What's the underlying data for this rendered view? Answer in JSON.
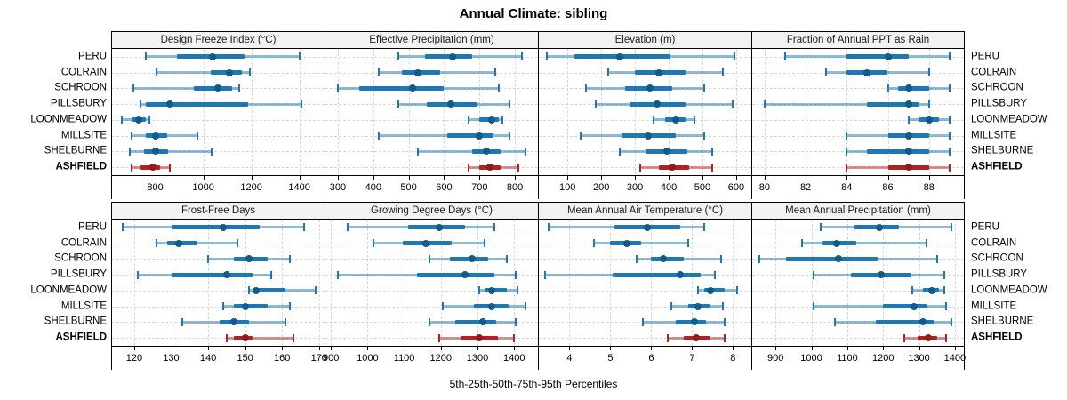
{
  "title": "Annual Climate: sibling",
  "xlabel": "5th-25th-50th-75th-95th Percentiles",
  "sites": [
    "PERU",
    "COLRAIN",
    "SCHROON",
    "PILLSBURY",
    "LOONMEADOW",
    "MILLSITE",
    "SHELBURNE",
    "ASHFIELD"
  ],
  "highlight_site": "ASHFIELD",
  "percentiles": [
    "5th",
    "25th",
    "50th",
    "75th",
    "95th"
  ],
  "colors": {
    "series": "#1f77b4",
    "series_dot": "#0f5c8c",
    "highlight": "#b22222",
    "highlight_dot": "#8f1d1d",
    "grid": "#d9d9d9",
    "header_bg": "#f2f2f2",
    "border": "#000000"
  },
  "chart_data": [
    {
      "type": "percentile-range",
      "row": 0,
      "col": 0,
      "title": "Design Freeze Index (°C)",
      "xlim": [
        620,
        1505
      ],
      "ticks": [
        800,
        1000,
        1200,
        1400
      ],
      "values": {
        "PERU": [
          760,
          890,
          1040,
          1170,
          1400
        ],
        "COLRAIN": [
          805,
          1030,
          1110,
          1160,
          1195
        ],
        "SCHROON": [
          710,
          960,
          1060,
          1120,
          1150
        ],
        "PILLSBURY": [
          740,
          760,
          860,
          1185,
          1410
        ],
        "LOONMEADOW": [
          660,
          700,
          730,
          760,
          775
        ],
        "MILLSITE": [
          700,
          760,
          800,
          850,
          975
        ],
        "SHELBURNE": [
          695,
          755,
          800,
          855,
          1035
        ],
        "ASHFIELD": [
          700,
          740,
          790,
          820,
          860
        ]
      }
    },
    {
      "type": "percentile-range",
      "row": 0,
      "col": 1,
      "title": "Effective Precipitation (mm)",
      "xlim": [
        265,
        865
      ],
      "ticks": [
        300,
        400,
        500,
        600,
        700,
        800
      ],
      "values": {
        "PERU": [
          470,
          545,
          625,
          680,
          820
        ],
        "COLRAIN": [
          415,
          480,
          525,
          590,
          745
        ],
        "SCHROON": [
          300,
          360,
          510,
          600,
          755
        ],
        "PILLSBURY": [
          470,
          550,
          620,
          695,
          785
        ],
        "LOONMEADOW": [
          670,
          700,
          735,
          755,
          765
        ],
        "MILLSITE": [
          415,
          610,
          700,
          740,
          785
        ],
        "SHELBURNE": [
          525,
          680,
          720,
          760,
          830
        ],
        "ASHFIELD": [
          670,
          700,
          730,
          760,
          810
        ]
      }
    },
    {
      "type": "percentile-range",
      "row": 0,
      "col": 2,
      "title": "Elevation (m)",
      "xlim": [
        15,
        645
      ],
      "ticks": [
        100,
        200,
        300,
        400,
        500,
        600
      ],
      "values": {
        "PERU": [
          40,
          120,
          255,
          405,
          595
        ],
        "COLRAIN": [
          220,
          300,
          370,
          450,
          560
        ],
        "SCHROON": [
          155,
          270,
          345,
          410,
          505
        ],
        "PILLSBURY": [
          185,
          285,
          365,
          450,
          590
        ],
        "LOONMEADOW": [
          355,
          390,
          420,
          450,
          475
        ],
        "MILLSITE": [
          140,
          260,
          340,
          420,
          505
        ],
        "SHELBURNE": [
          255,
          330,
          395,
          455,
          530
        ],
        "ASHFIELD": [
          315,
          370,
          410,
          460,
          530
        ]
      }
    },
    {
      "type": "percentile-range",
      "row": 0,
      "col": 3,
      "title": "Fraction of Annual PPT as Rain",
      "xlim": [
        79.4,
        89.7
      ],
      "ticks": [
        80,
        82,
        84,
        86,
        88
      ],
      "values": {
        "PERU": [
          81,
          84,
          86,
          87,
          89
        ],
        "COLRAIN": [
          83,
          84,
          85,
          86,
          88
        ],
        "SCHROON": [
          86,
          86.5,
          87,
          88,
          89
        ],
        "PILLSBURY": [
          80,
          85,
          87,
          87.5,
          88
        ],
        "LOONMEADOW": [
          87,
          87.5,
          88,
          88.5,
          89
        ],
        "MILLSITE": [
          84,
          86,
          87,
          88,
          89
        ],
        "SHELBURNE": [
          84,
          85,
          87,
          88,
          89
        ],
        "ASHFIELD": [
          84,
          86,
          87,
          88,
          89
        ]
      }
    },
    {
      "type": "percentile-range",
      "row": 1,
      "col": 0,
      "title": "Frost-Free Days",
      "xlim": [
        114,
        171.5
      ],
      "ticks": [
        120,
        130,
        140,
        150,
        160,
        170
      ],
      "values": {
        "PERU": [
          117,
          130,
          144,
          154,
          166
        ],
        "COLRAIN": [
          126,
          129,
          132,
          137,
          148
        ],
        "SCHROON": [
          140,
          147,
          151,
          156,
          162
        ],
        "PILLSBURY": [
          121,
          130,
          145,
          152,
          157
        ],
        "LOONMEADOW": [
          151,
          152,
          153,
          161,
          169
        ],
        "MILLSITE": [
          144,
          147,
          150,
          156,
          162
        ],
        "SHELBURNE": [
          133,
          143,
          147,
          151,
          161
        ],
        "ASHFIELD": [
          145,
          147,
          150,
          152,
          163
        ]
      }
    },
    {
      "type": "percentile-range",
      "row": 1,
      "col": 1,
      "title": "Growing Degree Days (°C)",
      "xlim": [
        885,
        1465
      ],
      "ticks": [
        900,
        1000,
        1100,
        1200,
        1300,
        1400
      ],
      "values": {
        "PERU": [
          945,
          1110,
          1195,
          1265,
          1345
        ],
        "COLRAIN": [
          1015,
          1095,
          1160,
          1230,
          1320
        ],
        "SCHROON": [
          1170,
          1225,
          1285,
          1330,
          1380
        ],
        "PILLSBURY": [
          920,
          1135,
          1265,
          1345,
          1405
        ],
        "LOONMEADOW": [
          1305,
          1320,
          1340,
          1380,
          1410
        ],
        "MILLSITE": [
          1205,
          1290,
          1340,
          1385,
          1430
        ],
        "SHELBURNE": [
          1170,
          1240,
          1315,
          1350,
          1405
        ],
        "ASHFIELD": [
          1195,
          1255,
          1305,
          1355,
          1400
        ]
      }
    },
    {
      "type": "percentile-range",
      "row": 1,
      "col": 2,
      "title": "Mean Annual Air Temperature (°C)",
      "xlim": [
        3.25,
        8.45
      ],
      "ticks": [
        4,
        5,
        6,
        7,
        8
      ],
      "values": {
        "PERU": [
          3.5,
          5.1,
          5.9,
          6.7,
          7.3
        ],
        "COLRAIN": [
          4.6,
          5.0,
          5.4,
          5.75,
          6.9
        ],
        "SCHROON": [
          5.65,
          6.0,
          6.3,
          6.8,
          7.7
        ],
        "PILLSBURY": [
          3.4,
          5.05,
          6.7,
          7.2,
          7.55
        ],
        "LOONMEADOW": [
          7.15,
          7.3,
          7.45,
          7.8,
          8.1
        ],
        "MILLSITE": [
          6.5,
          6.9,
          7.15,
          7.45,
          7.75
        ],
        "SHELBURNE": [
          5.8,
          6.6,
          7.05,
          7.35,
          7.8
        ],
        "ASHFIELD": [
          6.4,
          6.8,
          7.1,
          7.45,
          7.8
        ]
      }
    },
    {
      "type": "percentile-range",
      "row": 1,
      "col": 3,
      "title": "Mean Annual Precipitation (mm)",
      "xlim": [
        835,
        1425
      ],
      "ticks": [
        900,
        1000,
        1100,
        1200,
        1300,
        1400
      ],
      "values": {
        "PERU": [
          1025,
          1120,
          1190,
          1245,
          1390
        ],
        "COLRAIN": [
          975,
          1030,
          1070,
          1125,
          1320
        ],
        "SCHROON": [
          855,
          930,
          1075,
          1185,
          1350
        ],
        "PILLSBURY": [
          1005,
          1110,
          1195,
          1280,
          1370
        ],
        "LOONMEADOW": [
          1280,
          1310,
          1335,
          1355,
          1370
        ],
        "MILLSITE": [
          1005,
          1200,
          1285,
          1320,
          1375
        ],
        "SHELBURNE": [
          1065,
          1180,
          1310,
          1340,
          1390
        ],
        "ASHFIELD": [
          1260,
          1295,
          1325,
          1350,
          1375
        ]
      }
    }
  ]
}
